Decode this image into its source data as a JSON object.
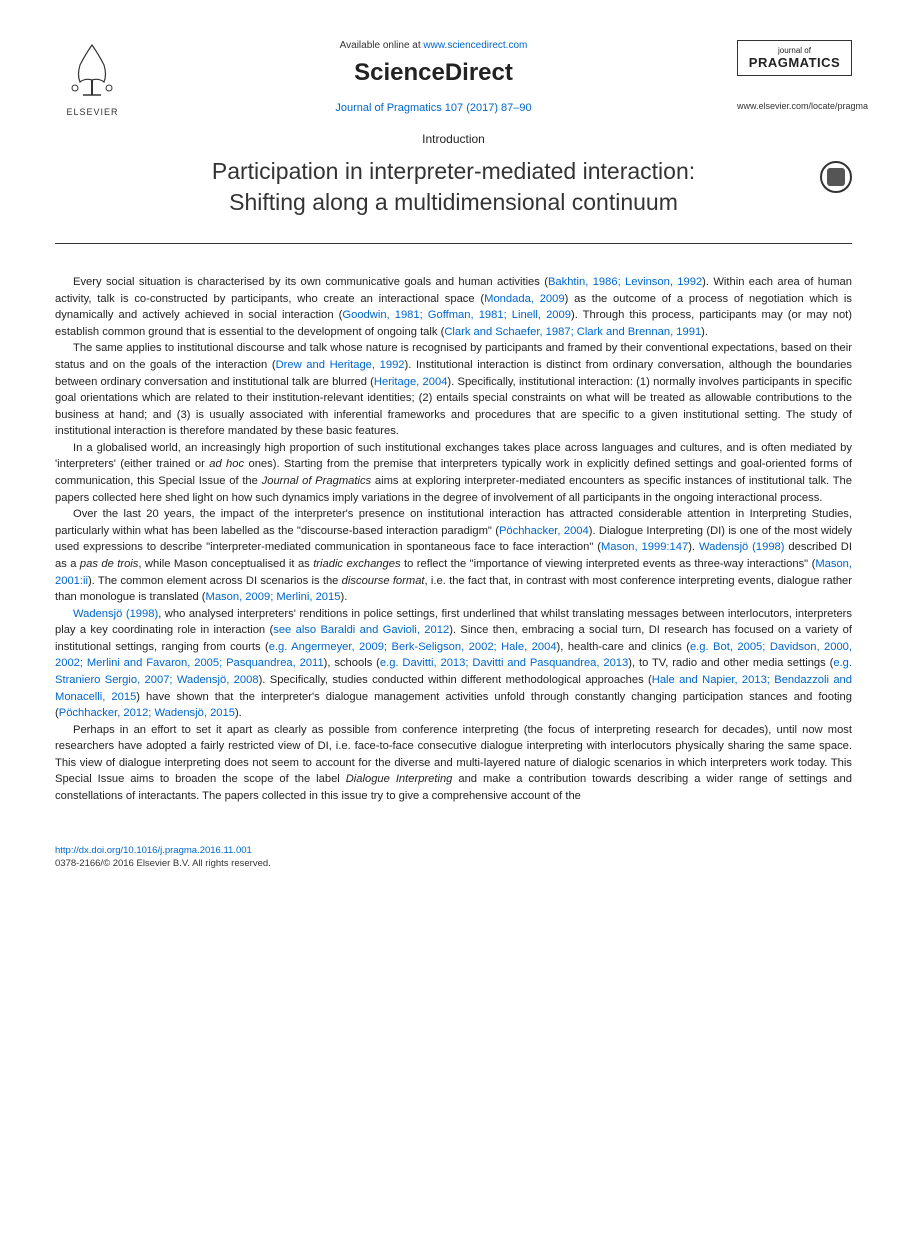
{
  "header": {
    "elsevier_label": "ELSEVIER",
    "available_prefix": "Available online at ",
    "available_url": "www.sciencedirect.com",
    "sciencedirect": "ScienceDirect",
    "journal_ref": "Journal of Pragmatics 107 (2017) 87–90",
    "journal_logo_line1": "journal of",
    "journal_logo_line2": "PRAGMATICS",
    "journal_url": "www.elsevier.com/locate/pragma"
  },
  "article": {
    "section_label": "Introduction",
    "title_line1": "Participation in interpreter-mediated interaction:",
    "title_line2": "Shifting along a multidimensional continuum"
  },
  "paragraphs": {
    "p1": "Every social situation is characterised by its own communicative goals and human activities (Bakhtin, 1986; Levinson, 1992). Within each area of human activity, talk is co-constructed by participants, who create an interactional space (Mondada, 2009) as the outcome of a process of negotiation which is dynamically and actively achieved in social interaction (Goodwin, 1981; Goffman, 1981; Linell, 2009). Through this process, participants may (or may not) establish common ground that is essential to the development of ongoing talk (Clark and Schaefer, 1987; Clark and Brennan, 1991).",
    "p2": "The same applies to institutional discourse and talk whose nature is recognised by participants and framed by their conventional expectations, based on their status and on the goals of the interaction (Drew and Heritage, 1992). Institutional interaction is distinct from ordinary conversation, although the boundaries between ordinary conversation and institutional talk are blurred (Heritage, 2004). Specifically, institutional interaction: (1) normally involves participants in specific goal orientations which are related to their institution-relevant identities; (2) entails special constraints on what will be treated as allowable contributions to the business at hand; and (3) is usually associated with inferential frameworks and procedures that are specific to a given institutional setting. The study of institutional interaction is therefore mandated by these basic features.",
    "p3": "In a globalised world, an increasingly high proportion of such institutional exchanges takes place across languages and cultures, and is often mediated by 'interpreters' (either trained or ad hoc ones). Starting from the premise that interpreters typically work in explicitly defined settings and goal-oriented forms of communication, this Special Issue of the Journal of Pragmatics aims at exploring interpreter-mediated encounters as specific instances of institutional talk. The papers collected here shed light on how such dynamics imply variations in the degree of involvement of all participants in the ongoing interactional process.",
    "p4": "Over the last 20 years, the impact of the interpreter's presence on institutional interaction has attracted considerable attention in Interpreting Studies, particularly within what has been labelled as the \"discourse-based interaction paradigm\" (Pöchhacker, 2004). Dialogue Interpreting (DI) is one of the most widely used expressions to describe \"interpreter-mediated communication in spontaneous face to face interaction\" (Mason, 1999:147). Wadensjö (1998) described DI as a pas de trois, while Mason conceptualised it as triadic exchanges to reflect the \"importance of viewing interpreted events as three-way interactions\" (Mason, 2001:ii). The common element across DI scenarios is the discourse format, i.e. the fact that, in contrast with most conference interpreting events, dialogue rather than monologue is translated (Mason, 2009; Merlini, 2015).",
    "p5": "Wadensjö (1998), who analysed interpreters' renditions in police settings, first underlined that whilst translating messages between interlocutors, interpreters play a key coordinating role in interaction (see also Baraldi and Gavioli, 2012). Since then, embracing a social turn, DI research has focused on a variety of institutional settings, ranging from courts (e.g. Angermeyer, 2009; Berk-Seligson, 2002; Hale, 2004), health-care and clinics (e.g. Bot, 2005; Davidson, 2000, 2002; Merlini and Favaron, 2005; Pasquandrea, 2011), schools (e.g. Davitti, 2013; Davitti and Pasquandrea, 2013), to TV, radio and other media settings (e.g. Straniero Sergio, 2007; Wadensjö, 2008). Specifically, studies conducted within different methodological approaches (Hale and Napier, 2013; Bendazzoli and Monacelli, 2015) have shown that the interpreter's dialogue management activities unfold through constantly changing participation stances and footing (Pöchhacker, 2012; Wadensjö, 2015).",
    "p6": "Perhaps in an effort to set it apart as clearly as possible from conference interpreting (the focus of interpreting research for decades), until now most researchers have adopted a fairly restricted view of DI, i.e. face-to-face consecutive dialogue interpreting with interlocutors physically sharing the same space. This view of dialogue interpreting does not seem to account for the diverse and multi-layered nature of dialogic scenarios in which interpreters work today. This Special Issue aims to broaden the scope of the label Dialogue Interpreting and make a contribution towards describing a wider range of settings and constellations of interactants. The papers collected in this issue try to give a comprehensive account of the"
  },
  "footer": {
    "doi": "http://dx.doi.org/10.1016/j.pragma.2016.11.001",
    "copyright": "0378-2166/© 2016 Elsevier B.V. All rights reserved."
  },
  "colors": {
    "link": "#0066cc",
    "text": "#222222",
    "background": "#ffffff"
  }
}
